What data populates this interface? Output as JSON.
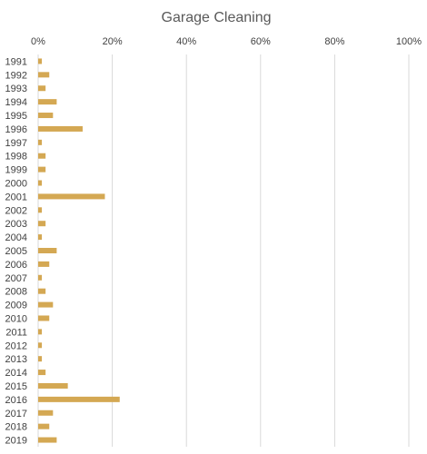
{
  "chart_data": {
    "type": "bar",
    "orientation": "horizontal",
    "title": "Garage Cleaning",
    "xlabel": "",
    "ylabel": "",
    "xlim": [
      0,
      100
    ],
    "x_ticks": [
      "0%",
      "20%",
      "40%",
      "60%",
      "80%",
      "100%"
    ],
    "x_tick_values": [
      0,
      20,
      40,
      60,
      80,
      100
    ],
    "x_axis_position": "top",
    "grid": true,
    "legend": "none",
    "bar_color": "#d4a853",
    "categories": [
      "1991",
      "1992",
      "1993",
      "1994",
      "1995",
      "1996",
      "1997",
      "1998",
      "1999",
      "2000",
      "2001",
      "2002",
      "2003",
      "2004",
      "2005",
      "2006",
      "2007",
      "2008",
      "2009",
      "2010",
      "2011",
      "2012",
      "2013",
      "2014",
      "2015",
      "2016",
      "2017",
      "2018",
      "2019"
    ],
    "values": [
      1,
      3,
      2,
      5,
      4,
      12,
      1,
      2,
      2,
      1,
      18,
      1,
      2,
      1,
      5,
      3,
      1,
      2,
      4,
      3,
      1,
      1,
      1,
      2,
      8,
      22,
      4,
      3,
      5
    ]
  }
}
